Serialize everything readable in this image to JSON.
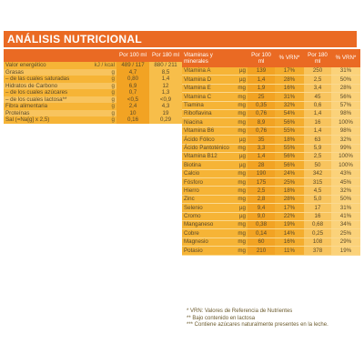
{
  "title": "ANÁLISIS NUTRICIONAL",
  "left_table": {
    "headers": [
      "",
      "",
      "Por 100 ml",
      "Por 180 ml"
    ],
    "rows": [
      {
        "name": "Valor energético",
        "unit": "kJ / kcal",
        "v100": "489 / 117",
        "v180": "880 / 211"
      },
      {
        "name": "Grasas",
        "unit": "g",
        "v100": "4,7",
        "v180": "8,5"
      },
      {
        "name": "– de las cuales saturadas",
        "unit": "g",
        "v100": "0,80",
        "v180": "1,4"
      },
      {
        "name": "Hidratos de Carbono",
        "unit": "g",
        "v100": "6,9",
        "v180": "12"
      },
      {
        "name": "– de los cuales azúcares",
        "unit": "g",
        "v100": "0,7",
        "v180": "1,3"
      },
      {
        "name": "– de los cuales lactosa**",
        "unit": "g",
        "v100": "<0,5",
        "v180": "<0,9"
      },
      {
        "name": "Fibra alimentaria",
        "unit": "g",
        "v100": "2,4",
        "v180": "4,3"
      },
      {
        "name": "Proteínas",
        "unit": "g",
        "v100": "10",
        "v180": "19"
      },
      {
        "name": "Sal (=Na[g] x 2,5)",
        "unit": "g",
        "v100": "0,16",
        "v180": "0,29"
      }
    ]
  },
  "right_table": {
    "headers": [
      "Vitaminas y minerales",
      "",
      "Por 100 ml",
      "% VRN*",
      "Por 180 ml",
      "% VRN*"
    ],
    "rows": [
      {
        "name": "Vitamina A",
        "unit": "µg",
        "v100": "139",
        "p100": "17%",
        "v180": "250",
        "p180": "31%"
      },
      {
        "name": "Vitamina D",
        "unit": "µg",
        "v100": "1,4",
        "p100": "28%",
        "v180": "2,5",
        "p180": "50%"
      },
      {
        "name": "Vitamina E",
        "unit": "mg",
        "v100": "1,9",
        "p100": "16%",
        "v180": "3,4",
        "p180": "28%"
      },
      {
        "name": "Vitamina C",
        "unit": "mg",
        "v100": "25",
        "p100": "31%",
        "v180": "45",
        "p180": "56%"
      },
      {
        "name": "Tiamina",
        "unit": "mg",
        "v100": "0,35",
        "p100": "32%",
        "v180": "0,6",
        "p180": "57%"
      },
      {
        "name": "Riboflavina",
        "unit": "mg",
        "v100": "0,76",
        "p100": "54%",
        "v180": "1,4",
        "p180": "98%"
      },
      {
        "name": "Niacina",
        "unit": "mg",
        "v100": "8,9",
        "p100": "56%",
        "v180": "16",
        "p180": "100%"
      },
      {
        "name": "Vitamina B6",
        "unit": "mg",
        "v100": "0,76",
        "p100": "55%",
        "v180": "1,4",
        "p180": "98%"
      },
      {
        "name": "Ácido Fólico",
        "unit": "µg",
        "v100": "35",
        "p100": "18%",
        "v180": "63",
        "p180": "32%"
      },
      {
        "name": "Ácido Pantoténico",
        "unit": "mg",
        "v100": "3,3",
        "p100": "55%",
        "v180": "5,9",
        "p180": "99%"
      },
      {
        "name": "Vitamina B12",
        "unit": "µg",
        "v100": "1,4",
        "p100": "56%",
        "v180": "2,5",
        "p180": "100%"
      },
      {
        "name": "Biotina",
        "unit": "µg",
        "v100": "28",
        "p100": "56%",
        "v180": "50",
        "p180": "100%"
      },
      {
        "name": "Calcio",
        "unit": "mg",
        "v100": "190",
        "p100": "24%",
        "v180": "342",
        "p180": "43%"
      },
      {
        "name": "Fósforo",
        "unit": "mg",
        "v100": "175",
        "p100": "25%",
        "v180": "315",
        "p180": "45%"
      },
      {
        "name": "Hierro",
        "unit": "mg",
        "v100": "2,5",
        "p100": "18%",
        "v180": "4,5",
        "p180": "32%"
      },
      {
        "name": "Zinc",
        "unit": "mg",
        "v100": "2,8",
        "p100": "28%",
        "v180": "5,0",
        "p180": "50%"
      },
      {
        "name": "Selenio",
        "unit": "µg",
        "v100": "9,4",
        "p100": "17%",
        "v180": "17",
        "p180": "31%"
      },
      {
        "name": "Cromo",
        "unit": "µg",
        "v100": "9,0",
        "p100": "22%",
        "v180": "16",
        "p180": "41%"
      },
      {
        "name": "Manganeso",
        "unit": "mg",
        "v100": "0,38",
        "p100": "19%",
        "v180": "0,68",
        "p180": "34%"
      },
      {
        "name": "Cobre",
        "unit": "mg",
        "v100": "0,14",
        "p100": "14%",
        "v180": "0,25",
        "p180": "25%"
      },
      {
        "name": "Magnesio",
        "unit": "mg",
        "v100": "60",
        "p100": "16%",
        "v180": "108",
        "p180": "29%"
      },
      {
        "name": "Potasio",
        "unit": "mg",
        "v100": "210",
        "p100": "11%",
        "v180": "378",
        "p180": "19%"
      }
    ]
  },
  "notes": [
    "* VRN: Valores de Referencia de Nutrientes",
    "** Bajo contenido en lactosa",
    "*** Contiene azúcares naturalmente presentes en la leche."
  ],
  "colors": {
    "accent": "#ea6a23",
    "cell": "#f6b436",
    "cell_light": "#f8c45e"
  }
}
